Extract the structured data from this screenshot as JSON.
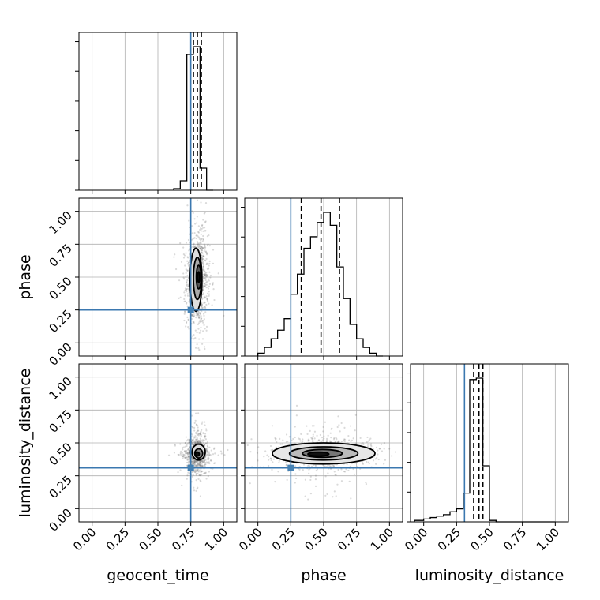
{
  "chart_data": {
    "type": "corner",
    "parameters": [
      "geocent_time",
      "phase",
      "luminosity_distance"
    ],
    "axis_range": [
      -0.1,
      1.1
    ],
    "tick_values": [
      0.0,
      0.25,
      0.5,
      0.75,
      1.0
    ],
    "tick_labels": [
      "0.00",
      "0.25",
      "0.50",
      "0.75",
      "1.00"
    ],
    "grid": true,
    "truth_values": {
      "geocent_time": 0.75,
      "phase": 0.25,
      "luminosity_distance": 0.31
    },
    "truth_color": "#4682b4",
    "histograms": [
      {
        "parameter": "geocent_time",
        "bin_edges": [
          0.62,
          0.67,
          0.72,
          0.77,
          0.82,
          0.87,
          0.92
        ],
        "counts": [
          1,
          6,
          86,
          91,
          14,
          0
        ],
        "quantiles": [
          0.77,
          0.8,
          0.83
        ]
      },
      {
        "parameter": "phase",
        "bin_edges": [
          0.0,
          0.05,
          0.1,
          0.15,
          0.2,
          0.25,
          0.3,
          0.35,
          0.4,
          0.45,
          0.5,
          0.55,
          0.6,
          0.65,
          0.7,
          0.75,
          0.8,
          0.85,
          0.9,
          0.95
        ],
        "counts": [
          2,
          6,
          12,
          18,
          26,
          43,
          57,
          75,
          83,
          93,
          100,
          91,
          62,
          40,
          22,
          12,
          6,
          2,
          0
        ],
        "quantiles": [
          0.33,
          0.48,
          0.62
        ]
      },
      {
        "parameter": "luminosity_distance",
        "bin_edges": [
          -0.07,
          0.0,
          0.05,
          0.1,
          0.15,
          0.2,
          0.25,
          0.3,
          0.35,
          0.4,
          0.45,
          0.5,
          0.55,
          0.6,
          1.0
        ],
        "counts": [
          1,
          2,
          3,
          4,
          5,
          7,
          9,
          20,
          99,
          100,
          39,
          1,
          0,
          0
        ],
        "quantiles": [
          0.38,
          0.42,
          0.45
        ]
      }
    ],
    "density_plots": [
      {
        "x": "geocent_time",
        "y": "phase",
        "center": [
          0.8,
          0.48
        ],
        "spread": [
          0.04,
          0.17
        ],
        "contours": [
          {
            "level": 1,
            "center": [
              0.79,
              0.48
            ],
            "radii": [
              0.045,
              0.24
            ],
            "fill": "#dddddd"
          },
          {
            "level": 2,
            "center": [
              0.8,
              0.49
            ],
            "radii": [
              0.03,
              0.16
            ],
            "fill": "#aaaaaa"
          },
          {
            "level": 3,
            "center": [
              0.81,
              0.5
            ],
            "radii": [
              0.018,
              0.09
            ],
            "fill": "#555555"
          },
          {
            "level": 4,
            "center": [
              0.81,
              0.5
            ],
            "radii": [
              0.008,
              0.04
            ],
            "fill": "#111111"
          }
        ]
      },
      {
        "x": "geocent_time",
        "y": "luminosity_distance",
        "center": [
          0.8,
          0.42
        ],
        "spread": [
          0.04,
          0.06
        ],
        "contours": [
          {
            "level": 1,
            "center": [
              0.81,
              0.43
            ],
            "radii": [
              0.05,
              0.06
            ],
            "fill": "#dddddd"
          },
          {
            "level": 2,
            "center": [
              0.81,
              0.42
            ],
            "radii": [
              0.03,
              0.035
            ],
            "fill": "#888888"
          },
          {
            "level": 3,
            "center": [
              0.8,
              0.415
            ],
            "radii": [
              0.015,
              0.015
            ],
            "fill": "#111111"
          }
        ]
      },
      {
        "x": "phase",
        "y": "luminosity_distance",
        "center": [
          0.5,
          0.42
        ],
        "spread": [
          0.18,
          0.06
        ],
        "contours": [
          {
            "level": 1,
            "center": [
              0.5,
              0.42
            ],
            "radii": [
              0.39,
              0.08
            ],
            "fill": "#e6e6e6"
          },
          {
            "level": 2,
            "center": [
              0.5,
              0.42
            ],
            "radii": [
              0.26,
              0.05
            ],
            "fill": "#bbbbbb"
          },
          {
            "level": 3,
            "center": [
              0.49,
              0.42
            ],
            "radii": [
              0.15,
              0.03
            ],
            "fill": "#777777"
          },
          {
            "level": 4,
            "center": [
              0.46,
              0.415
            ],
            "radii": [
              0.08,
              0.015
            ],
            "fill": "#111111"
          }
        ]
      }
    ]
  }
}
